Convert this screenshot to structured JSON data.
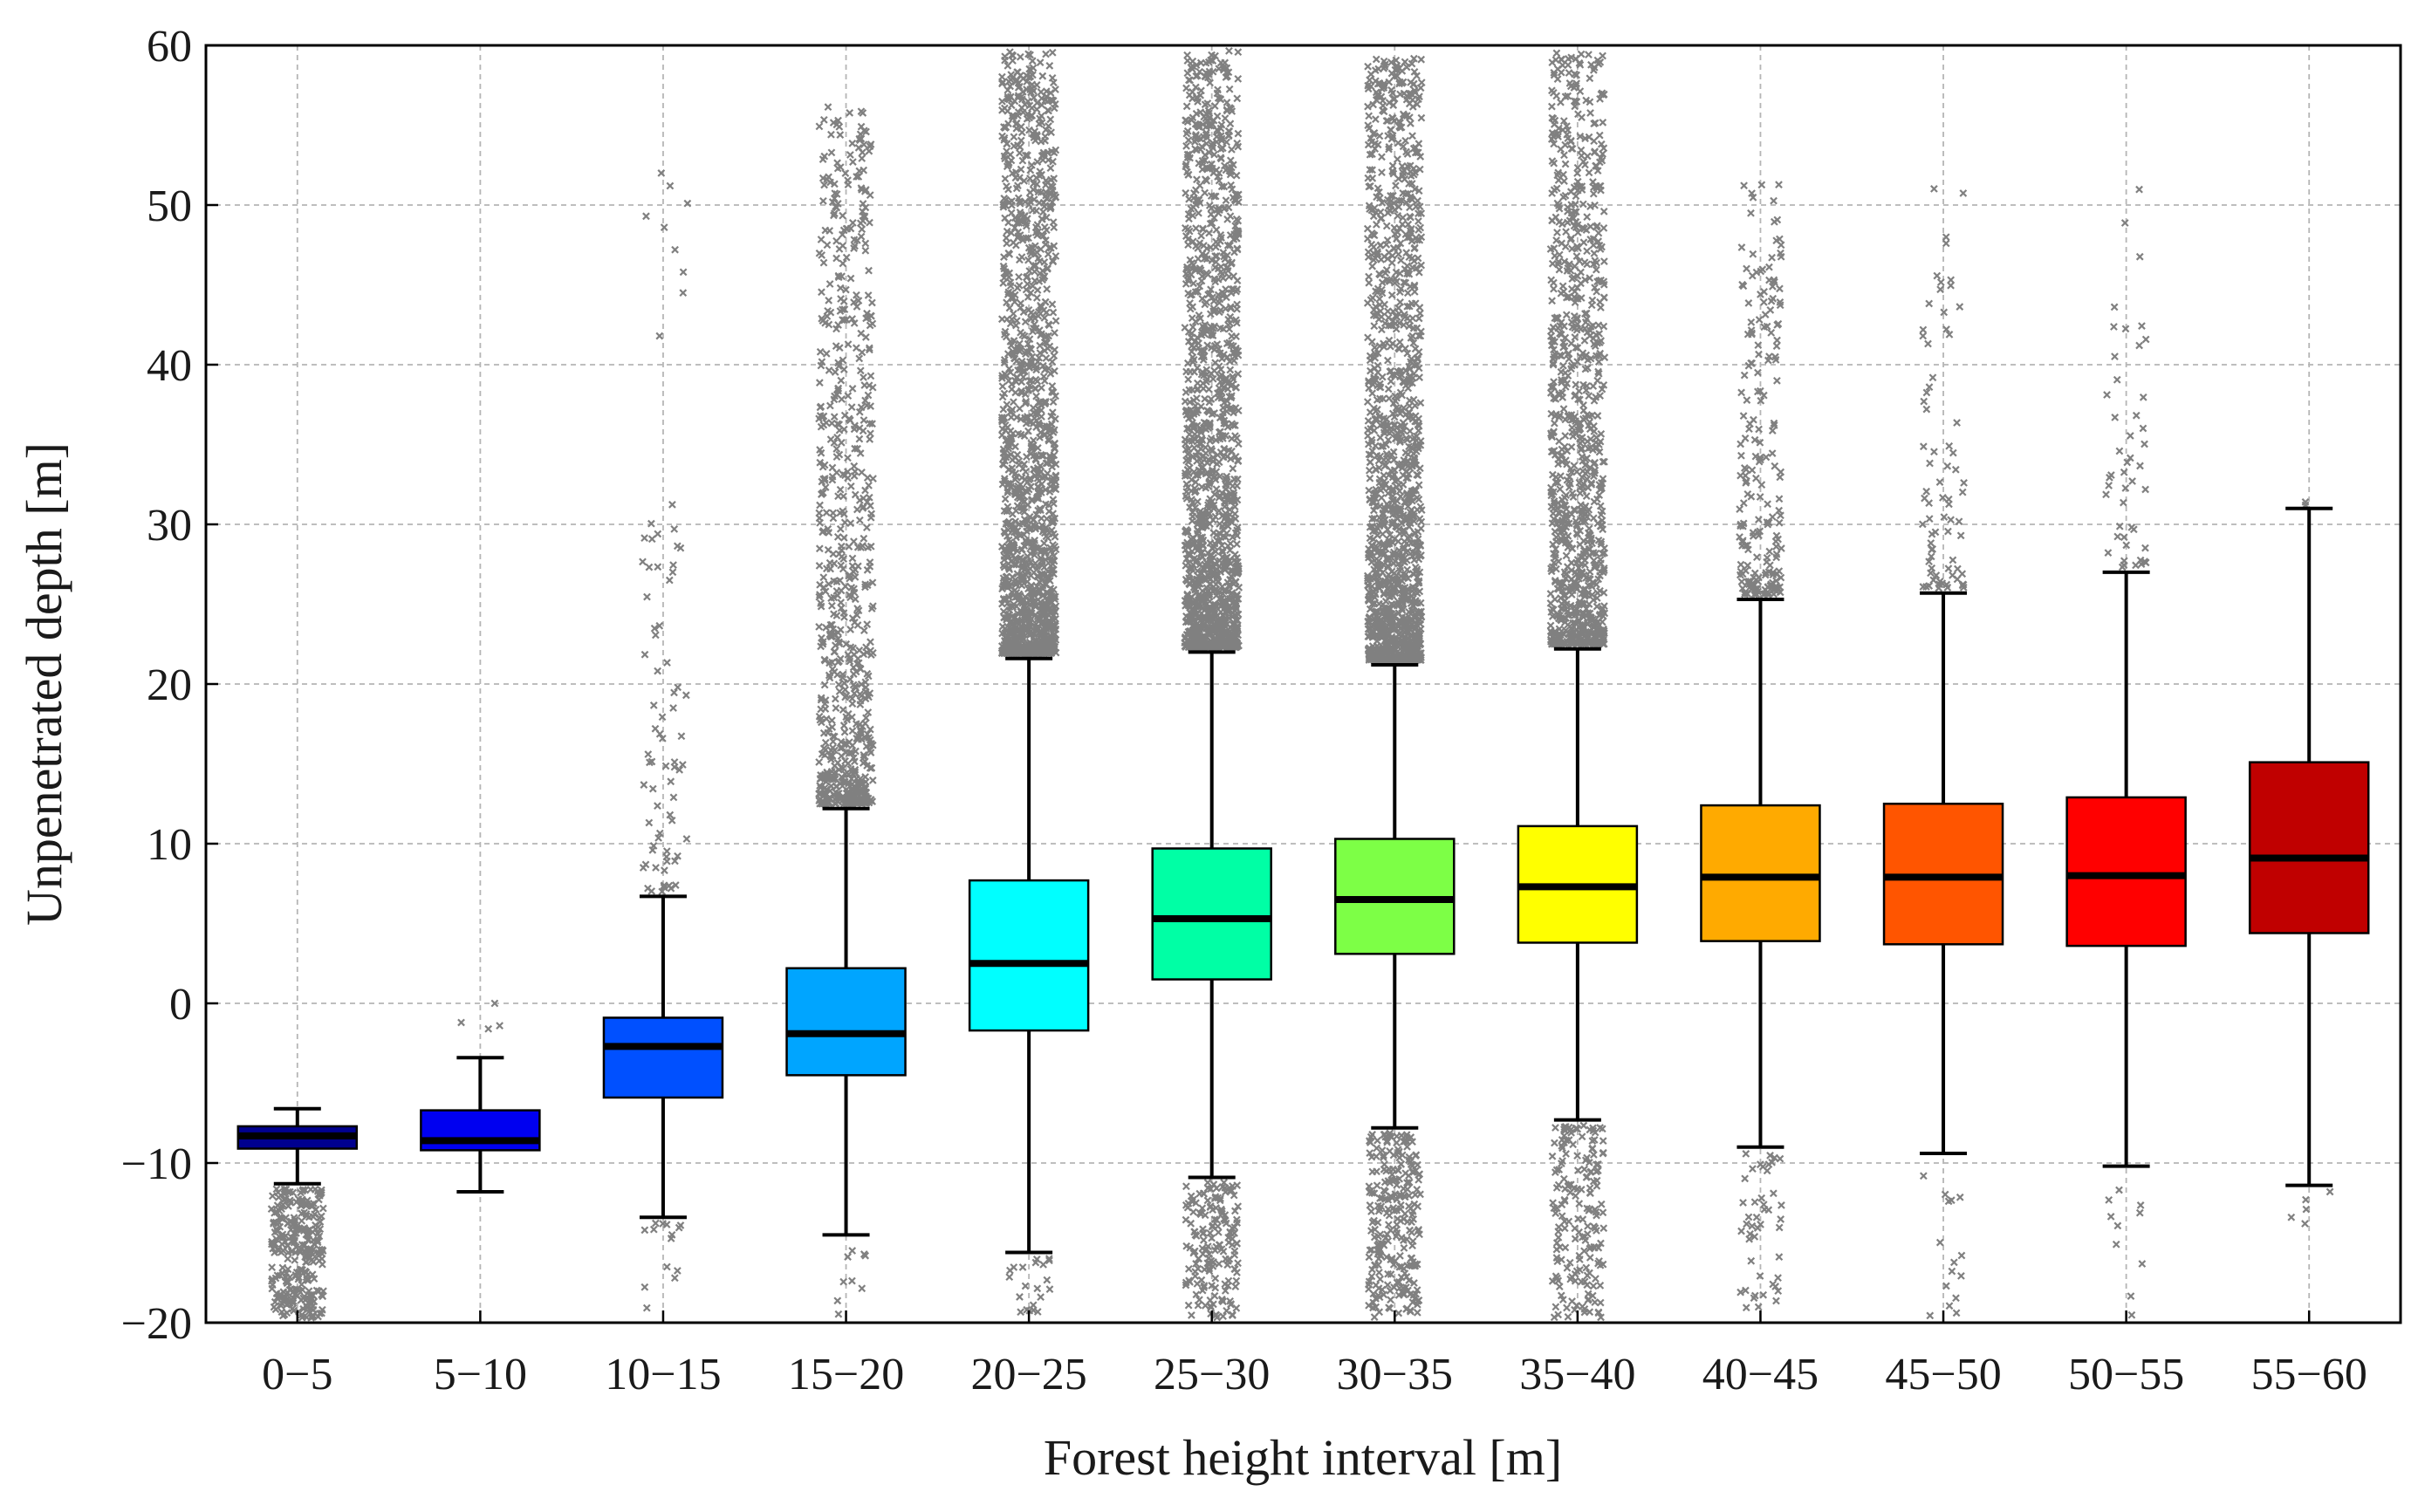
{
  "chart_data": {
    "type": "box",
    "title": "",
    "xlabel": "Forest height interval [m]",
    "ylabel": "Unpenetrated depth [m]",
    "ylim": [
      -20,
      60
    ],
    "yticks": [
      -20,
      -10,
      0,
      10,
      20,
      30,
      40,
      50,
      60
    ],
    "grid": true,
    "outlier_color": "#808080",
    "categories": [
      "0−5",
      "5−10",
      "10−15",
      "15−20",
      "20−25",
      "25−30",
      "30−35",
      "35−40",
      "40−45",
      "45−50",
      "50−55",
      "55−60"
    ],
    "boxes": [
      {
        "category": "0−5",
        "color": "#00008F",
        "whisker_low": -11.3,
        "q1": -9.1,
        "median": -8.3,
        "q3": -7.7,
        "whisker_high": -6.6,
        "outliers_high": [],
        "outliers_low": [
          -11.7
        ],
        "density_high": 0,
        "density_low": 1
      },
      {
        "category": "5−10",
        "color": "#0000F0",
        "whisker_low": -11.8,
        "q1": -9.2,
        "median": -8.6,
        "q3": -6.7,
        "whisker_high": -3.4,
        "outliers_high": [
          -1.2,
          -1.6,
          0.0,
          -1.4
        ],
        "outliers_low": [],
        "density_high": 0,
        "density_low": 0
      },
      {
        "category": "10−15",
        "color": "#0050FF",
        "whisker_low": -13.4,
        "q1": -5.9,
        "median": -2.7,
        "q3": -0.9,
        "whisker_high": 6.7,
        "outliers_high": [
          7.2,
          8.5,
          9.6,
          10.3,
          11.8,
          12.9,
          14.8,
          15.6,
          17.2,
          18.5,
          19.3,
          26.5,
          29.4,
          41.8,
          44.5,
          45.8,
          47.2,
          48.6,
          49.3,
          50.1,
          51.2,
          52.0
        ],
        "outliers_low": [
          -13.8,
          -14.2,
          -14.5
        ],
        "density_high": 0.06,
        "density_low": 0.05
      },
      {
        "category": "15−20",
        "color": "#00A5FF",
        "whisker_low": -14.5,
        "q1": -4.5,
        "median": -1.9,
        "q3": 2.2,
        "whisker_high": 12.2,
        "outliers_high": [],
        "outliers_low": [],
        "density_high": 0.45,
        "density_low": 0.05
      },
      {
        "category": "20−25",
        "color": "#00FFFF",
        "whisker_low": -15.6,
        "q1": -1.7,
        "median": 2.5,
        "q3": 7.7,
        "whisker_high": 21.6,
        "outliers_high": [],
        "outliers_low": [],
        "density_high": 1.0,
        "density_low": 0.15
      },
      {
        "category": "25−30",
        "color": "#00FFA5",
        "whisker_low": -10.9,
        "q1": 1.5,
        "median": 5.3,
        "q3": 9.7,
        "whisker_high": 22.0,
        "outliers_high": [],
        "outliers_low": [],
        "density_high": 1.0,
        "density_low": 0.55
      },
      {
        "category": "30−35",
        "color": "#7DFF46",
        "whisker_low": -7.8,
        "q1": 3.1,
        "median": 6.5,
        "q3": 10.3,
        "whisker_high": 21.2,
        "outliers_high": [],
        "outliers_low": [],
        "density_high": 1.0,
        "density_low": 0.6
      },
      {
        "category": "35−40",
        "color": "#FFFF00",
        "whisker_low": -7.3,
        "q1": 3.8,
        "median": 7.3,
        "q3": 11.1,
        "whisker_high": 22.2,
        "outliers_high": [],
        "outliers_low": [],
        "density_high": 0.7,
        "density_low": 0.4
      },
      {
        "category": "40−45",
        "color": "#FFAA00",
        "whisker_low": -9.0,
        "q1": 3.9,
        "median": 7.9,
        "q3": 12.4,
        "whisker_high": 25.3,
        "outliers_high": [],
        "outliers_low": [],
        "density_high": 0.22,
        "density_low": 0.12
      },
      {
        "category": "45−50",
        "color": "#FF5500",
        "whisker_low": -9.4,
        "q1": 3.7,
        "median": 7.9,
        "q3": 12.5,
        "whisker_high": 25.7,
        "outliers_high": [],
        "outliers_low": [],
        "density_high": 0.08,
        "density_low": 0.04
      },
      {
        "category": "50−55",
        "color": "#FF0000",
        "whisker_low": -10.2,
        "q1": 3.6,
        "median": 8.0,
        "q3": 12.9,
        "whisker_high": 27.0,
        "outliers_high": [],
        "outliers_low": [],
        "density_high": 0.05,
        "density_low": 0.03
      },
      {
        "category": "55−60",
        "color": "#C00000",
        "whisker_low": -11.4,
        "q1": 4.4,
        "median": 9.1,
        "q3": 15.1,
        "whisker_high": 31.0,
        "outliers_high": [
          31.2,
          31.4
        ],
        "outliers_low": [
          -11.8,
          -12.3,
          -12.9,
          -13.4,
          -13.8
        ],
        "density_high": 0,
        "density_low": 0
      }
    ]
  }
}
